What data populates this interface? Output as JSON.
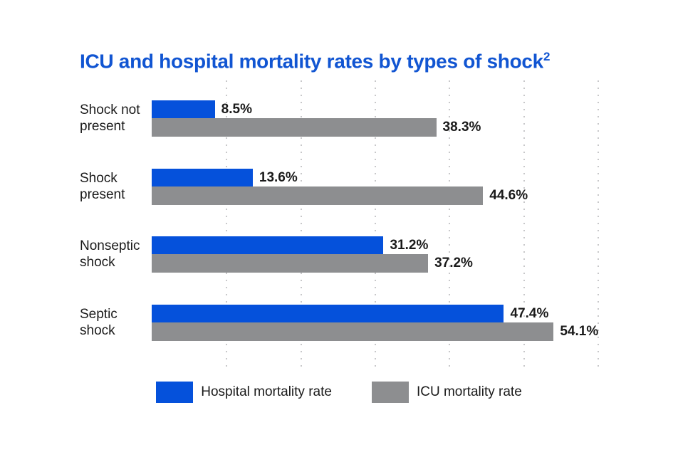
{
  "title": {
    "text": "ICU and hospital mortality rates by types of shock",
    "superscript": "2"
  },
  "colors": {
    "title": "#1155d2",
    "hospital_bar": "#0551db",
    "icu_bar": "#8d8e90",
    "value_text": "#1a1a1a",
    "gridline_dots": "#c8c8ca",
    "background": "#ffffff"
  },
  "chart_data": {
    "type": "bar",
    "orientation": "horizontal",
    "title": "ICU and hospital mortality rates by types of shock",
    "title_footnote_marker": "2",
    "categories": [
      "Shock not present",
      "Shock present",
      "Nonseptic shock",
      "Septic shock"
    ],
    "categories_display": [
      [
        "Shock not",
        "present"
      ],
      [
        "Shock",
        "present"
      ],
      [
        "Nonseptic",
        "shock"
      ],
      [
        "Septic",
        "shock"
      ]
    ],
    "series": [
      {
        "name": "Hospital mortality rate",
        "color": "#0551db",
        "values": [
          8.5,
          13.6,
          31.2,
          47.4
        ]
      },
      {
        "name": "ICU mortality rate",
        "color": "#8d8e90",
        "values": [
          38.3,
          44.6,
          37.2,
          54.1
        ]
      }
    ],
    "value_labels": [
      [
        "8.5%",
        "13.6%",
        "31.2%",
        "47.4%"
      ],
      [
        "38.3%",
        "44.6%",
        "37.2%",
        "54.1%"
      ]
    ],
    "value_suffix": "%",
    "xlim": [
      0,
      62.5
    ],
    "gridlines": [
      10,
      20,
      30,
      40,
      50,
      60
    ],
    "grid_style": "dotted-vertical",
    "legend_position": "bottom",
    "legend": [
      "Hospital mortality rate",
      "ICU mortality rate"
    ]
  }
}
